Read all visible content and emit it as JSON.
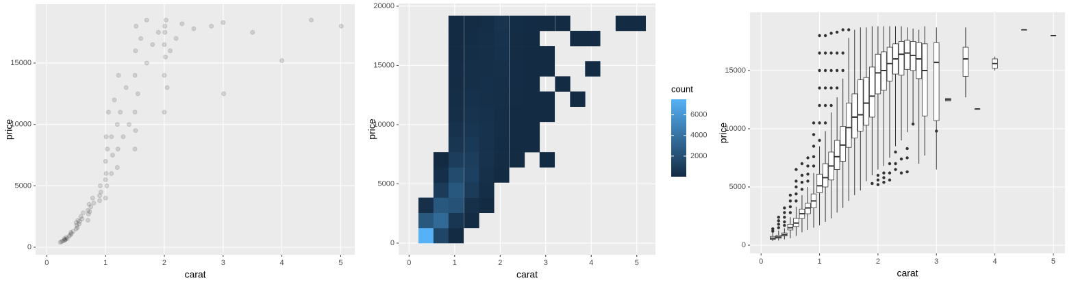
{
  "chart_data": [
    {
      "type": "scatter",
      "xlabel": "carat",
      "ylabel": "price",
      "color": "#000000",
      "alpha": 0.12,
      "grid": true,
      "xlim": [
        -0.19,
        5.24
      ],
      "ylim": [
        -613,
        19800
      ],
      "xticks": [
        0,
        1,
        2,
        3,
        4,
        5
      ],
      "yticks": [
        0,
        5000,
        10000,
        15000
      ],
      "x": [
        0.23,
        0.25,
        0.27,
        0.3,
        0.3,
        0.31,
        0.32,
        0.33,
        0.35,
        0.38,
        0.4,
        0.41,
        0.42,
        0.45,
        0.5,
        0.5,
        0.51,
        0.52,
        0.53,
        0.55,
        0.56,
        0.58,
        0.6,
        0.62,
        0.7,
        0.7,
        0.71,
        0.72,
        0.73,
        0.75,
        0.78,
        0.8,
        0.9,
        0.9,
        0.91,
        0.92,
        1.0,
        1.0,
        1.0,
        1.01,
        1.01,
        1.02,
        1.03,
        1.05,
        1.1,
        1.1,
        1.12,
        1.15,
        1.2,
        1.2,
        1.21,
        1.22,
        1.25,
        1.3,
        1.35,
        1.4,
        1.5,
        1.5,
        1.5,
        1.51,
        1.51,
        1.52,
        1.55,
        1.6,
        1.7,
        1.7,
        1.8,
        1.9,
        2.0,
        2.0,
        2.0,
        2.01,
        2.01,
        2.02,
        2.03,
        2.05,
        2.1,
        2.2,
        2.3,
        2.5,
        2.8,
        3.0,
        3.01,
        3.5,
        4.0,
        4.5,
        5.01
      ],
      "y": [
        400,
        450,
        500,
        550,
        700,
        600,
        650,
        800,
        700,
        900,
        1000,
        1200,
        1100,
        1300,
        1500,
        2000,
        1800,
        1600,
        2200,
        1900,
        2100,
        2500,
        2300,
        2800,
        2200,
        3000,
        2700,
        3500,
        2900,
        3300,
        4000,
        3600,
        4200,
        3800,
        5000,
        4500,
        4000,
        5500,
        7000,
        6000,
        9000,
        5000,
        8000,
        11000,
        6000,
        9000,
        7500,
        12000,
        6500,
        10000,
        8000,
        14000,
        11000,
        9000,
        13000,
        10000,
        8000,
        11000,
        14000,
        16000,
        9500,
        18000,
        12500,
        17000,
        15000,
        18500,
        16500,
        17500,
        11000,
        14000,
        16500,
        18000,
        17500,
        15500,
        18500,
        13000,
        16000,
        17000,
        18200,
        17800,
        18000,
        18300,
        12500,
        17500,
        15200,
        18500,
        18000
      ]
    },
    {
      "type": "bin2d",
      "xlabel": "carat",
      "ylabel": "price",
      "grid": true,
      "xlim": [
        -0.23,
        5.41
      ],
      "ylim": [
        -983,
        20230
      ],
      "xticks": [
        0,
        1,
        2,
        3,
        4,
        5
      ],
      "yticks": [
        0,
        5000,
        10000,
        15000,
        20000
      ],
      "legend_title": "count",
      "legend_position": "right",
      "legend_ticks": [
        2000,
        4000,
        6000
      ],
      "color_low": "#132B43",
      "color_high": "#56B1F7",
      "columns": [
        {
          "x": 0.37,
          "y": [
            640,
            1920,
            3200
          ],
          "values": [
            7500,
            2500,
            300
          ]
        },
        {
          "x": 0.7,
          "y": [
            640,
            1920,
            3200,
            4480,
            5760,
            7040
          ],
          "values": [
            1500,
            3500,
            2500,
            900,
            200,
            40
          ]
        },
        {
          "x": 1.03,
          "y": [
            640,
            1920,
            3200,
            4480,
            5760,
            7040,
            8320,
            9600,
            10880,
            12160,
            13440,
            14720,
            16000,
            17280,
            18560
          ],
          "values": [
            10,
            600,
            2200,
            2500,
            1800,
            1000,
            600,
            400,
            250,
            150,
            100,
            70,
            50,
            40,
            30
          ]
        },
        {
          "x": 1.37,
          "y": [
            1920,
            3200,
            4480,
            5760,
            7040,
            8320,
            9600,
            10880,
            12160,
            13440,
            14720,
            16000,
            17280,
            18560
          ],
          "values": [
            20,
            300,
            900,
            1200,
            1000,
            800,
            600,
            450,
            350,
            250,
            200,
            150,
            120,
            100
          ]
        },
        {
          "x": 1.7,
          "y": [
            3200,
            4480,
            5760,
            7040,
            8320,
            9600,
            10880,
            12160,
            13440,
            14720,
            16000,
            17280,
            18560
          ],
          "values": [
            20,
            150,
            300,
            400,
            400,
            380,
            350,
            300,
            280,
            250,
            220,
            200,
            180
          ]
        },
        {
          "x": 2.03,
          "y": [
            5760,
            7040,
            8320,
            9600,
            10880,
            12160,
            13440,
            14720,
            16000,
            17280,
            18560
          ],
          "values": [
            10,
            60,
            120,
            150,
            180,
            200,
            250,
            300,
            350,
            400,
            450
          ]
        },
        {
          "x": 2.37,
          "y": [
            7040,
            8320,
            9600,
            10880,
            12160,
            13440,
            14720,
            16000,
            17280,
            18560
          ],
          "values": [
            5,
            20,
            40,
            50,
            60,
            70,
            80,
            90,
            100,
            110
          ]
        },
        {
          "x": 2.7,
          "y": [
            8320,
            9600,
            10880,
            12160,
            13440,
            14720,
            16000,
            17280,
            18560
          ],
          "values": [
            3,
            8,
            12,
            10,
            8,
            10,
            15,
            20,
            25
          ]
        },
        {
          "x": 3.03,
          "y": [
            7040,
            10880,
            12160,
            14720,
            16000,
            18560
          ],
          "values": [
            2,
            3,
            2,
            1,
            2,
            3
          ]
        },
        {
          "x": 3.37,
          "y": [
            13440,
            18560
          ],
          "values": [
            2,
            1
          ]
        },
        {
          "x": 3.7,
          "y": [
            12160,
            17280
          ],
          "values": [
            1,
            1
          ]
        },
        {
          "x": 4.03,
          "y": [
            14720,
            17280
          ],
          "values": [
            1,
            1
          ]
        },
        {
          "x": 4.7,
          "y": [
            18560
          ],
          "values": [
            1
          ]
        },
        {
          "x": 5.03,
          "y": [
            18560
          ],
          "values": [
            1
          ]
        }
      ]
    },
    {
      "type": "box",
      "xlabel": "carat",
      "ylabel": "price",
      "grid": true,
      "xlim": [
        -0.19,
        5.2
      ],
      "ylim": [
        -706,
        20000
      ],
      "xticks": [
        0,
        1,
        2,
        3,
        4,
        5
      ],
      "yticks": [
        0,
        5000,
        10000,
        15000
      ],
      "x": [
        0.2,
        0.3,
        0.4,
        0.5,
        0.6,
        0.7,
        0.8,
        0.9,
        1.0,
        1.1,
        1.2,
        1.3,
        1.4,
        1.5,
        1.6,
        1.7,
        1.8,
        1.9,
        2.0,
        2.1,
        2.2,
        2.3,
        2.4,
        2.5,
        2.6,
        2.7,
        2.8,
        3.0,
        3.2,
        3.5,
        3.7,
        4.0,
        4.5,
        5.0
      ],
      "low": [
        350,
        400,
        500,
        600,
        800,
        1100,
        1300,
        1500,
        1700,
        2000,
        2300,
        2800,
        3200,
        3800,
        4300,
        4700,
        5500,
        6000,
        6500,
        6800,
        7500,
        8500,
        9000,
        9700,
        10500,
        7000,
        7700,
        6500,
        12400,
        12700,
        11700,
        15000,
        18500,
        18000
      ],
      "q1": [
        500,
        600,
        800,
        1300,
        1600,
        2300,
        2700,
        3200,
        4500,
        5000,
        5600,
        6500,
        7200,
        8400,
        9200,
        9800,
        10300,
        11000,
        13000,
        13300,
        14100,
        14700,
        14600,
        15100,
        15000,
        14300,
        11100,
        10700,
        12400,
        14500,
        11700,
        15200,
        18500,
        18000
      ],
      "median": [
        600,
        700,
        900,
        1500,
        1900,
        2700,
        3200,
        3800,
        5100,
        5800,
        6800,
        7600,
        8600,
        10100,
        11000,
        11200,
        12200,
        12800,
        14800,
        15000,
        15600,
        16000,
        16400,
        16500,
        16300,
        16000,
        15000,
        15700,
        12500,
        16000,
        11700,
        15600,
        18500,
        18000
      ],
      "q3": [
        750,
        850,
        1050,
        1800,
        2300,
        3100,
        3600,
        4400,
        6100,
        7000,
        8000,
        9000,
        10200,
        12200,
        13000,
        14200,
        14400,
        15300,
        16400,
        16600,
        17000,
        17300,
        17500,
        17600,
        17500,
        17400,
        17300,
        17400,
        12600,
        17000,
        11700,
        16000,
        18500,
        18000
      ],
      "high": [
        1100,
        1250,
        1450,
        2400,
        3300,
        4300,
        5000,
        6200,
        8500,
        9800,
        11400,
        12700,
        14300,
        17800,
        18500,
        18700,
        18700,
        18800,
        18800,
        18800,
        18800,
        18800,
        18800,
        18700,
        18600,
        18500,
        18800,
        18700,
        12600,
        18700,
        11700,
        16200,
        18500,
        18000
      ],
      "outliers": [
        [
          1200,
          1400
        ],
        [
          1500,
          1800,
          2100,
          2400
        ],
        [
          1700,
          2000,
          2400,
          2800,
          3200
        ],
        [
          2800,
          3300,
          3800,
          4300
        ],
        [
          3800,
          4400,
          5000,
          5500,
          6500
        ],
        [
          4800,
          5400,
          6000,
          7000
        ],
        [
          5500,
          6100,
          6800,
          7500
        ],
        [
          6800,
          7600,
          8500,
          9500,
          10500
        ],
        [
          9000,
          10500,
          12000,
          13500,
          15000,
          16500,
          18000
        ],
        [
          10500,
          12000,
          13500,
          15000,
          16500,
          18000
        ],
        [
          12000,
          13500,
          15000,
          16500,
          18200
        ],
        [
          13500,
          15000,
          16500,
          18300
        ],
        [
          15000,
          16500,
          18500
        ],
        [
          18500
        ],
        [],
        [],
        [],
        [
          5300
        ],
        [
          5200,
          5600,
          6000
        ],
        [
          5400,
          5800,
          6200
        ],
        [
          5600,
          6200,
          7000
        ],
        [
          6500,
          7000,
          8000
        ],
        [
          6200,
          7400
        ],
        [
          6300,
          7500,
          8300
        ],
        [
          10400
        ],
        [],
        [],
        [
          9800
        ],
        [],
        [],
        [],
        [],
        [],
        []
      ]
    }
  ]
}
